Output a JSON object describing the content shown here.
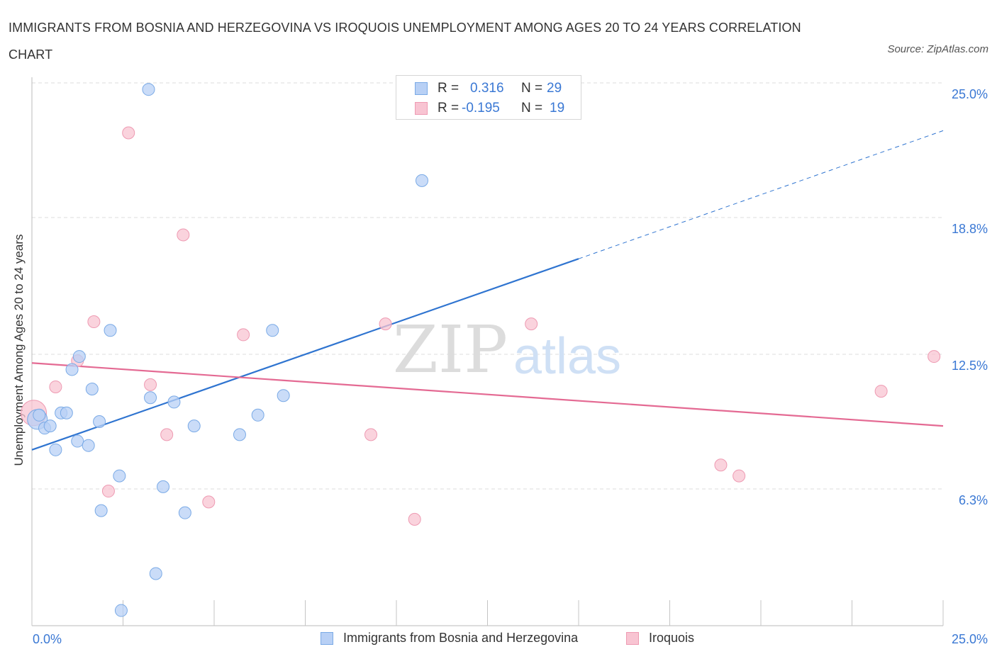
{
  "title": "IMMIGRANTS FROM BOSNIA AND HERZEGOVINA VS IROQUOIS UNEMPLOYMENT AMONG AGES 20 TO 24 YEARS CORRELATION CHART",
  "source": "Source: ZipAtlas.com",
  "watermark": {
    "zip": "ZIP",
    "atlas": "atlas"
  },
  "legend": {
    "r_label": "R =",
    "n_label": "N =",
    "rows": [
      {
        "r": "0.316",
        "n": "29"
      },
      {
        "r": "-0.195",
        "n": "19"
      }
    ]
  },
  "colors": {
    "blue_fill": "#b8d0f5",
    "blue_stroke": "#7aaae6",
    "blue_line": "#2f74d0",
    "pink_fill": "#f8c4d2",
    "pink_stroke": "#ee9ab2",
    "pink_line": "#e46a93",
    "axis_text": "#3a78d4",
    "grid": "#dcdcdc"
  },
  "chart_data": {
    "type": "scatter",
    "title": "IMMIGRANTS FROM BOSNIA AND HERZEGOVINA VS IROQUOIS UNEMPLOYMENT AMONG AGES 20 TO 24 YEARS CORRELATION CHART",
    "xlabel": "",
    "ylabel": "Unemployment Among Ages 20 to 24 years",
    "xlim": [
      0,
      25
    ],
    "ylim": [
      0,
      25
    ],
    "x_tick_labels": [
      "0.0%",
      "25.0%"
    ],
    "y_ticks": [
      6.3,
      12.5,
      18.8,
      25.0
    ],
    "y_tick_labels": [
      "6.3%",
      "12.5%",
      "18.8%",
      "25.0%"
    ],
    "grid": true,
    "legend_position": "bottom",
    "series": [
      {
        "name": "Immigrants from Bosnia and Herzegovina",
        "color": "#b8d0f5",
        "points": [
          [
            0.15,
            9.5
          ],
          [
            0.2,
            9.7
          ],
          [
            0.35,
            9.1
          ],
          [
            0.5,
            9.2
          ],
          [
            0.65,
            8.1
          ],
          [
            0.8,
            9.8
          ],
          [
            0.95,
            9.8
          ],
          [
            1.1,
            11.8
          ],
          [
            1.3,
            12.4
          ],
          [
            1.25,
            8.5
          ],
          [
            1.55,
            8.3
          ],
          [
            1.65,
            10.9
          ],
          [
            1.85,
            9.4
          ],
          [
            1.9,
            5.3
          ],
          [
            2.15,
            13.6
          ],
          [
            2.4,
            6.9
          ],
          [
            2.45,
            0.7
          ],
          [
            3.2,
            24.7
          ],
          [
            3.25,
            10.5
          ],
          [
            3.4,
            2.4
          ],
          [
            3.6,
            6.4
          ],
          [
            3.9,
            10.3
          ],
          [
            4.2,
            5.2
          ],
          [
            4.45,
            9.2
          ],
          [
            5.7,
            8.8
          ],
          [
            6.2,
            9.7
          ],
          [
            6.6,
            13.6
          ],
          [
            6.9,
            10.6
          ],
          [
            10.7,
            20.5
          ]
        ],
        "trend": {
          "x": [
            0,
            15.0
          ],
          "y": [
            8.1,
            16.9
          ],
          "dashed_extension_to": [
            25.0,
            22.8
          ]
        }
      },
      {
        "name": "Iroquois",
        "color": "#f8c4d2",
        "points": [
          [
            0.05,
            9.8
          ],
          [
            0.65,
            11.0
          ],
          [
            1.25,
            12.2
          ],
          [
            1.7,
            14.0
          ],
          [
            2.1,
            6.2
          ],
          [
            2.65,
            22.7
          ],
          [
            3.25,
            11.1
          ],
          [
            3.7,
            8.8
          ],
          [
            4.15,
            18.0
          ],
          [
            4.85,
            5.7
          ],
          [
            5.8,
            13.4
          ],
          [
            9.3,
            8.8
          ],
          [
            9.7,
            13.9
          ],
          [
            10.5,
            4.9
          ],
          [
            13.7,
            13.9
          ],
          [
            18.9,
            7.4
          ],
          [
            19.4,
            6.9
          ],
          [
            23.3,
            10.8
          ],
          [
            24.75,
            12.4
          ]
        ],
        "trend": {
          "x": [
            0,
            25.0
          ],
          "y": [
            12.1,
            9.2
          ]
        }
      }
    ]
  }
}
